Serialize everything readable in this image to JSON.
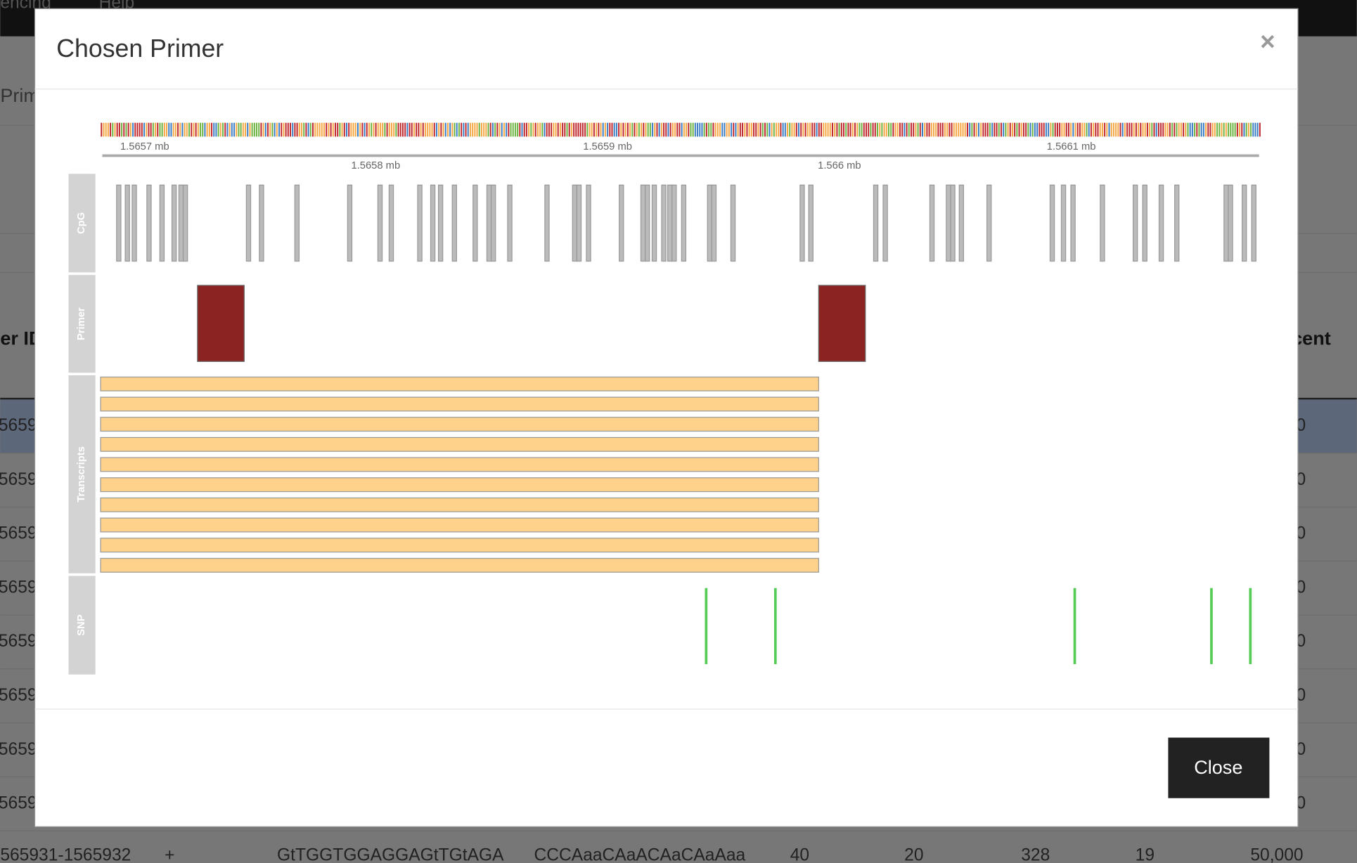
{
  "nav": [
    "encing",
    "Help"
  ],
  "background": {
    "breadcrumb": "Prim",
    "left_header": "er ID",
    "right_header": "cent",
    "row_prefix": [
      "5659",
      "5659",
      "5659",
      "5659",
      "5659",
      "5659",
      "5659",
      "5659"
    ],
    "row_suffix": [
      "0",
      "0",
      "0",
      "0",
      "0",
      "0",
      "0",
      "0"
    ],
    "last_row": [
      "565931-1565932",
      "+",
      "GtTGGTGGAGGAGtTGtAGA",
      "CCCAaaCAaACAaCAaAaa",
      "40",
      "20",
      "328",
      "19",
      "50,000"
    ]
  },
  "modal": {
    "title": "Chosen Primer",
    "close_icon": "×",
    "button": "Close",
    "axis_labels_top": [
      "1.5657 mb",
      "1.5659 mb",
      "1.5661 mb"
    ],
    "axis_labels_bottom": [
      "1.5658 mb",
      "1.566 mb"
    ],
    "tracks": [
      "CpG",
      "Primer",
      "Transcripts",
      "SNP"
    ]
  }
}
